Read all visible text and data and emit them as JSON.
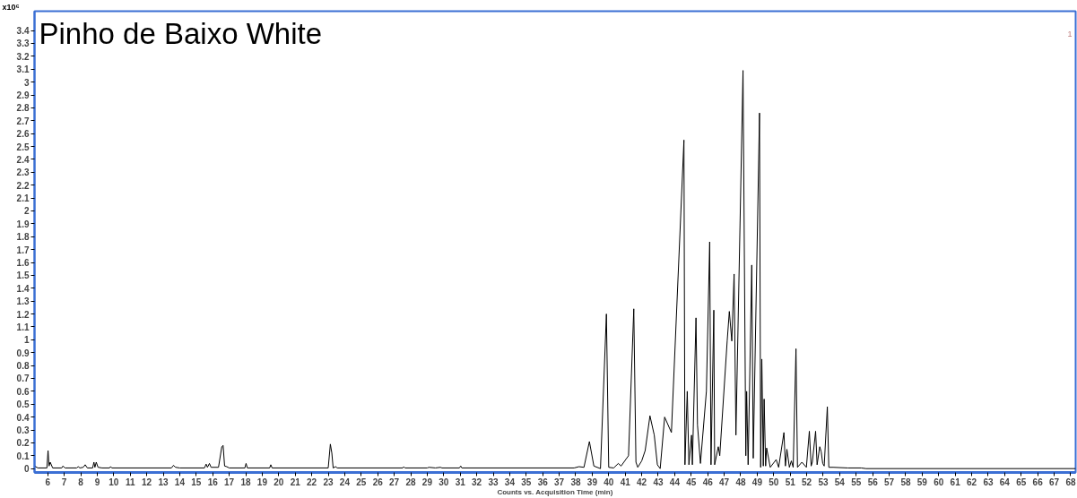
{
  "chart_data": {
    "type": "line",
    "title": "Pinho de Baixo White",
    "xlabel": "Counts vs. Acquisition Time (min)",
    "ylabel": "x10⁶",
    "annotations": [
      "1"
    ],
    "xlim": [
      5.2,
      68.3
    ],
    "ylim": [
      -0.03,
      3.55
    ],
    "xticks": [
      6,
      7,
      8,
      9,
      10,
      11,
      12,
      13,
      14,
      15,
      16,
      17,
      18,
      19,
      20,
      21,
      22,
      23,
      24,
      25,
      26,
      27,
      28,
      29,
      30,
      31,
      32,
      33,
      34,
      35,
      36,
      37,
      38,
      39,
      40,
      41,
      42,
      43,
      44,
      45,
      46,
      47,
      48,
      49,
      50,
      51,
      52,
      53,
      54,
      55,
      56,
      57,
      58,
      59,
      60,
      61,
      62,
      63,
      64,
      65,
      66,
      67,
      68
    ],
    "yticks": [
      0,
      0.1,
      0.2,
      0.3,
      0.4,
      0.5,
      0.6,
      0.7,
      0.8,
      0.9,
      1,
      1.1,
      1.2,
      1.3,
      1.4,
      1.5,
      1.6,
      1.7,
      1.8,
      1.9,
      2,
      2.1,
      2.2,
      2.3,
      2.4,
      2.5,
      2.6,
      2.7,
      2.8,
      2.9,
      3,
      3.1,
      3.2,
      3.3,
      3.4
    ],
    "grid": false,
    "marker": "none",
    "line_style": "solid",
    "series": [
      {
        "color": "#000000",
        "x": [
          5.2,
          5.4,
          5.95,
          6.02,
          6.08,
          6.15,
          6.3,
          6.85,
          6.92,
          7.05,
          7.75,
          7.85,
          7.95,
          8.15,
          8.27,
          8.4,
          8.72,
          8.8,
          8.86,
          8.94,
          9.05,
          9.3,
          9.75,
          9.8,
          9.9,
          13.5,
          13.62,
          13.75,
          14.0,
          15.5,
          15.6,
          15.68,
          15.8,
          15.9,
          16.35,
          16.55,
          16.63,
          16.72,
          16.85,
          17.0,
          17.95,
          18.02,
          18.1,
          19.45,
          19.52,
          19.6,
          23.0,
          23.13,
          23.22,
          23.3,
          23.45,
          23.55,
          27.52,
          27.58,
          27.65,
          29.0,
          29.1,
          29.5,
          29.8,
          29.9,
          30.95,
          31.03,
          31.1,
          37.9,
          38.2,
          38.5,
          38.83,
          39.1,
          39.5,
          39.86,
          40.0,
          40.3,
          40.58,
          40.75,
          41.03,
          41.2,
          41.52,
          41.65,
          41.76,
          42.0,
          42.21,
          42.5,
          42.76,
          42.95,
          43.12,
          43.39,
          43.8,
          44.56,
          44.62,
          44.76,
          44.86,
          45.02,
          45.07,
          45.29,
          45.38,
          45.56,
          45.92,
          46.12,
          46.2,
          46.37,
          46.42,
          46.64,
          46.73,
          47.18,
          47.31,
          47.46,
          47.6,
          47.71,
          48.14,
          48.31,
          48.36,
          48.45,
          48.67,
          48.76,
          49.14,
          49.21,
          49.28,
          49.37,
          49.42,
          49.51,
          49.57,
          49.79,
          50.15,
          50.3,
          50.62,
          50.71,
          50.8,
          50.95,
          51.07,
          51.18,
          51.35,
          51.44,
          51.71,
          51.98,
          52.16,
          52.27,
          52.34,
          52.54,
          52.63,
          52.79,
          52.88,
          52.97,
          53.06,
          53.25,
          53.34,
          53.6,
          54.5,
          55.3,
          55.6,
          68.3
        ],
        "values": [
          0.02,
          0.005,
          0.005,
          0.14,
          0.02,
          0.05,
          0.005,
          0.005,
          0.02,
          0.005,
          0.005,
          0.015,
          0.005,
          0.01,
          0.03,
          0.005,
          0.005,
          0.05,
          0.01,
          0.05,
          0.01,
          0.005,
          0.005,
          0.015,
          0.005,
          0.005,
          0.025,
          0.01,
          0.005,
          0.005,
          0.035,
          0.01,
          0.04,
          0.01,
          0.01,
          0.17,
          0.18,
          0.02,
          0.015,
          0.005,
          0.005,
          0.04,
          0.005,
          0.005,
          0.03,
          0.005,
          0.005,
          0.19,
          0.12,
          0.005,
          0.015,
          0.005,
          0.005,
          0.015,
          0.005,
          0.005,
          0.01,
          0.005,
          0.01,
          0.005,
          0.005,
          0.02,
          0.005,
          0.005,
          0.015,
          0.01,
          0.21,
          0.02,
          0,
          1.2,
          0.01,
          0.005,
          0.04,
          0.02,
          0.07,
          0.1,
          1.24,
          0.05,
          0.01,
          0.06,
          0.14,
          0.41,
          0.26,
          0.03,
          0,
          0.4,
          0.28,
          2.55,
          0.03,
          0.6,
          0.03,
          0.26,
          0.03,
          1.17,
          0.34,
          0.04,
          0.6,
          1.76,
          0.03,
          1.23,
          0.03,
          0.17,
          0.1,
          0.99,
          1.22,
          0.99,
          1.51,
          0.26,
          3.09,
          0.1,
          0.6,
          0.03,
          1.58,
          0.08,
          2.76,
          0.01,
          0.85,
          0.02,
          0.54,
          0.02,
          0.16,
          0.01,
          0.07,
          0.01,
          0.28,
          0.02,
          0.15,
          0.01,
          0.06,
          0.01,
          0.93,
          0.01,
          0.05,
          0.01,
          0.29,
          0.02,
          0.05,
          0.29,
          0.03,
          0.17,
          0.13,
          0.04,
          0.02,
          0.48,
          0.01,
          0.01,
          0.005,
          0.005,
          0,
          0
        ]
      }
    ]
  }
}
